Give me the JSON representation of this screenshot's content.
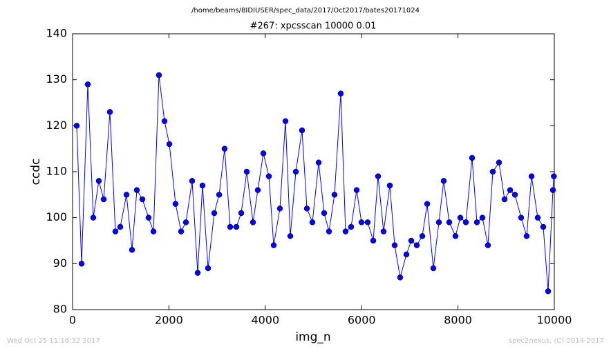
{
  "header": {
    "path": "/home/beams/8IDIUSER/spec_data/2017/Oct2017/bates20171024"
  },
  "chart_data": {
    "type": "line",
    "title": "#267: xpcsscan 10000 0.01",
    "x_label": "img_n",
    "y_label": "ccdc",
    "x": [
      86,
      187,
      316,
      430,
      545,
      646,
      775,
      889,
      990,
      1119,
      1234,
      1334,
      1449,
      1578,
      1679,
      1793,
      1908,
      2009,
      2138,
      2253,
      2353,
      2482,
      2597,
      2697,
      2812,
      2941,
      3042,
      3156,
      3271,
      3400,
      3501,
      3616,
      3745,
      3845,
      3960,
      4075,
      4175,
      4304,
      4419,
      4519,
      4634,
      4763,
      4864,
      4978,
      5108,
      5222,
      5323,
      5437,
      5567,
      5667,
      5782,
      5897,
      5997,
      6126,
      6241,
      6341,
      6456,
      6585,
      6686,
      6800,
      6930,
      7030,
      7145,
      7260,
      7360,
      7489,
      7604,
      7704,
      7819,
      7948,
      8049,
      8164,
      8293,
      8393,
      8508,
      8622,
      8723,
      8852,
      8967,
      9082,
      9182,
      9311,
      9426,
      9527,
      9656,
      9770,
      9871,
      9971,
      9990
    ],
    "series": [
      {
        "name": "ccdc",
        "color": "#0000ff",
        "values": [
          120,
          90,
          129,
          100,
          108,
          104,
          123,
          97,
          98,
          105,
          93,
          106,
          104,
          100,
          97,
          131,
          121,
          116,
          103,
          97,
          99,
          108,
          88,
          107,
          89,
          101,
          105,
          115,
          98,
          98,
          101,
          110,
          99,
          106,
          114,
          109,
          94,
          102,
          121,
          96,
          110,
          119,
          102,
          99,
          112,
          101,
          97,
          105,
          127,
          97,
          98,
          106,
          99,
          99,
          95,
          109,
          97,
          107,
          94,
          87,
          92,
          95,
          94,
          96,
          103,
          89,
          99,
          108,
          99,
          96,
          100,
          99,
          113,
          99,
          100,
          94,
          110,
          112,
          104,
          106,
          105,
          100,
          96,
          109,
          100,
          98,
          84,
          106,
          109
        ]
      }
    ],
    "xlim": [
      0,
      10000
    ],
    "xticks": [
      0,
      2000,
      4000,
      6000,
      8000,
      10000
    ],
    "ylim": [
      80,
      140
    ],
    "yticks": [
      80,
      90,
      100,
      110,
      120,
      130,
      140
    ],
    "grid": false
  },
  "footer": {
    "left": "Wed Oct 25 11:16:32 2017",
    "right": "spec2nexus, (C) 2014-2017"
  }
}
